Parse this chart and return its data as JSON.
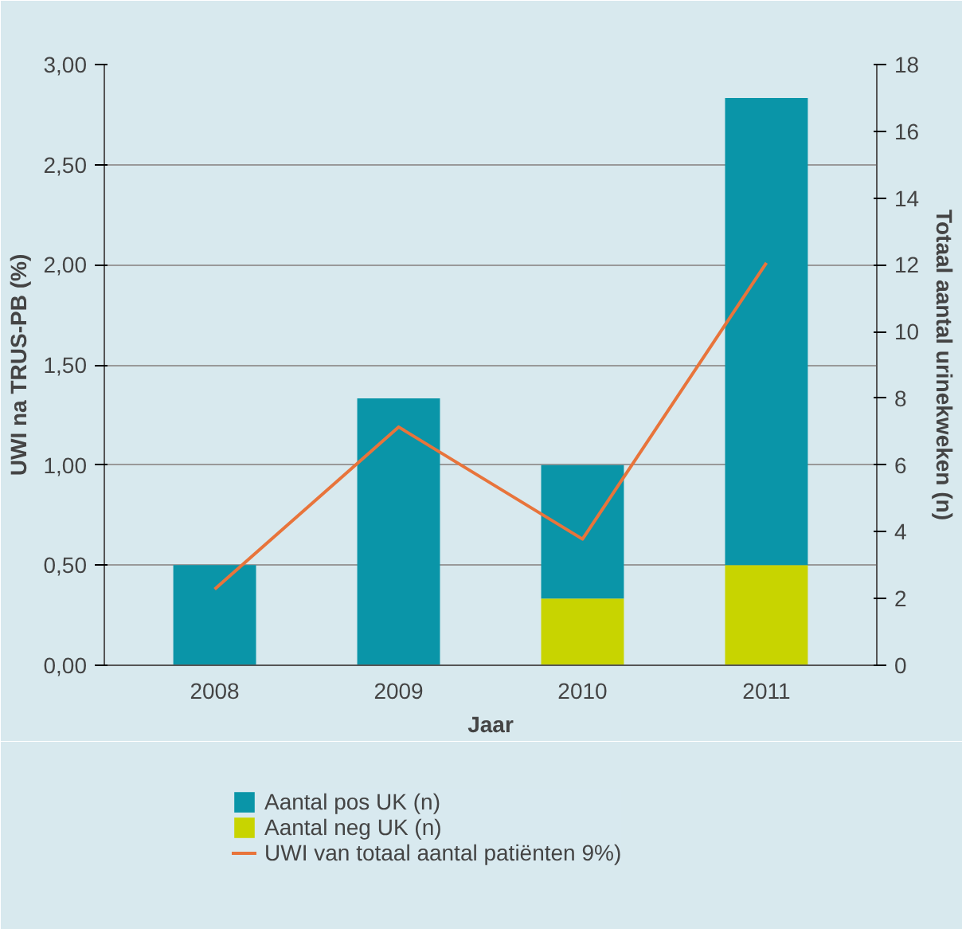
{
  "chart_data": {
    "type": "bar",
    "stacked": true,
    "xlabel": "Jaar",
    "ylabel": "UWI na TRUS-PB (%)",
    "y2label": "Totaal aantal urinekweken (n)",
    "categories": [
      "2008",
      "2009",
      "2010",
      "2011"
    ],
    "series": [
      {
        "name": "Aantal neg UK (n)",
        "color": "#c8d400",
        "values": [
          0,
          0,
          2,
          3
        ],
        "axis": "y2"
      },
      {
        "name": "Aantal pos UK (n)",
        "color": "#0a95a8",
        "values": [
          3,
          8,
          4,
          14
        ],
        "axis": "y2"
      },
      {
        "name": "UWI van totaal aantal patiënten 9%)",
        "type": "line",
        "color": "#e8743b",
        "values": [
          0.38,
          1.19,
          0.63,
          2.01
        ]
      }
    ],
    "ylim": [
      0,
      3
    ],
    "yticks": [
      {
        "value": 0,
        "label": "0,00"
      },
      {
        "value": 0.5,
        "label": "0,50"
      },
      {
        "value": 1,
        "label": "1,00"
      },
      {
        "value": 1.5,
        "label": "1,50"
      },
      {
        "value": 2,
        "label": "2,00"
      },
      {
        "value": 2.5,
        "label": "2,50"
      },
      {
        "value": 3,
        "label": "3,00"
      }
    ],
    "y2lim": [
      0,
      18
    ],
    "y2ticks": [
      0,
      2,
      4,
      6,
      8,
      10,
      12,
      14,
      16,
      18
    ],
    "grid": "y",
    "legend": "bottom"
  }
}
